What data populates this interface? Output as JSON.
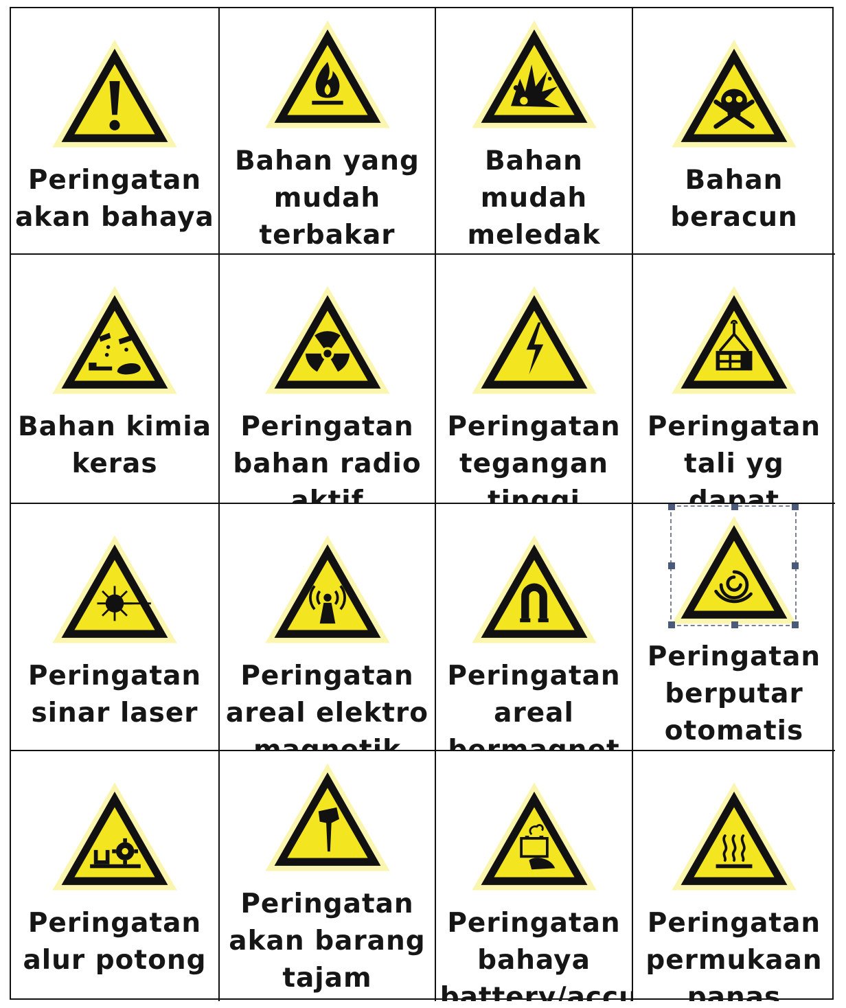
{
  "colors": {
    "sign_fill": "#f4e521",
    "sign_border": "#111111",
    "glow": "#f7f07a",
    "text": "#161616",
    "grid_line": "#111111"
  },
  "signs": [
    {
      "label": "Peringatan\nakan bahaya",
      "icon": "exclamation-icon"
    },
    {
      "label": "Bahan yang\nmudah\nterbakar",
      "icon": "flame-icon"
    },
    {
      "label": "Bahan\nmudah\nmeledak",
      "icon": "explosion-icon"
    },
    {
      "label": "Bahan\nberacun",
      "icon": "skull-crossbones-icon"
    },
    {
      "label": "Bahan kimia\nkeras",
      "icon": "corrosive-icon"
    },
    {
      "label": "Peringatan\nbahan radio\naktif",
      "icon": "radiation-icon"
    },
    {
      "label": "Peringatan\ntegangan\ntinggi",
      "icon": "lightning-icon"
    },
    {
      "label": "Peringatan\ntali yg dapat\nputus",
      "icon": "suspended-load-icon"
    },
    {
      "label": "Peringatan\nsinar laser",
      "icon": "laser-icon"
    },
    {
      "label": "Peringatan\nareal elektro\nmagnetik",
      "icon": "electromagnetic-icon"
    },
    {
      "label": "Peringatan\nareal\nbermagnet",
      "icon": "magnet-icon"
    },
    {
      "label": "Peringatan\nberputar\notomatis",
      "icon": "rotating-icon"
    },
    {
      "label": "Peringatan\nalur potong",
      "icon": "cutting-blade-icon"
    },
    {
      "label": "Peringatan\nakan barang\ntajam",
      "icon": "sharp-object-icon"
    },
    {
      "label": "Peringatan\nbahaya\nbattery/accu",
      "icon": "battery-icon"
    },
    {
      "label": "Peringatan\npermukaan\npanas",
      "icon": "hot-surface-icon"
    }
  ]
}
